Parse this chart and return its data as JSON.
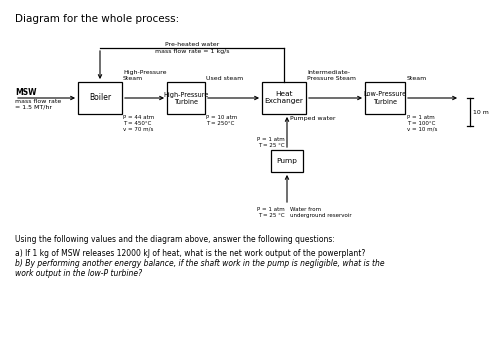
{
  "title": "Diagram for the whole process:",
  "bg_color": "#ffffff",
  "preheated_label": "Pre-heated water",
  "preheated_sublabel": "mass flow rate = 1 kg/s",
  "msw_label": "MSW",
  "msw_sublabel": "mass flow rate\n= 1.5 MT/hr",
  "boiler_label": "Boiler",
  "hp_steam_label": "High-Pressure\nSteam",
  "hp_steam_props": "P = 44 atm\nT = 450°C\nv = 70 m/s",
  "hpt_label": "High-Pressure\nTurbine",
  "used_steam_label": "Used steam",
  "used_steam_props": "P = 10 atm\nT = 250°C",
  "hex_label": "Heat\nExchanger",
  "int_steam_label": "Intermediate-\nPressure Steam",
  "lpt_label": "Low-Pressure\nTurbine",
  "steam_out_label": "Steam",
  "steam_out_props": "P = 1 atm\nT = 100°C\nv = 10 m/s",
  "pump_label": "Pump",
  "pump_in_props": "P = 1 atm\nT = 25 °C",
  "pumped_water_label": "Pumped water",
  "pump_bottom_props": "P = 1 atm\nT = 25 °C",
  "water_from_label": "Water from\nunderground reservoir",
  "height_label": "10 m",
  "q_intro": "Using the following values and the diagram above, answer the following questions:",
  "q_a": "a) If 1 kg of MSW releases 12000 kJ of heat, what is the net work output of the powerplant?",
  "q_b1": "b) By performing another energy balance, if the shaft work in the pump is negligible, what is the",
  "q_b2": "work output in the low-P turbine?",
  "box_color": "#ffffff",
  "box_edge": "#000000",
  "arrow_color": "#000000",
  "text_color": "#000000",
  "font_size": 5.0,
  "title_font_size": 7.5
}
